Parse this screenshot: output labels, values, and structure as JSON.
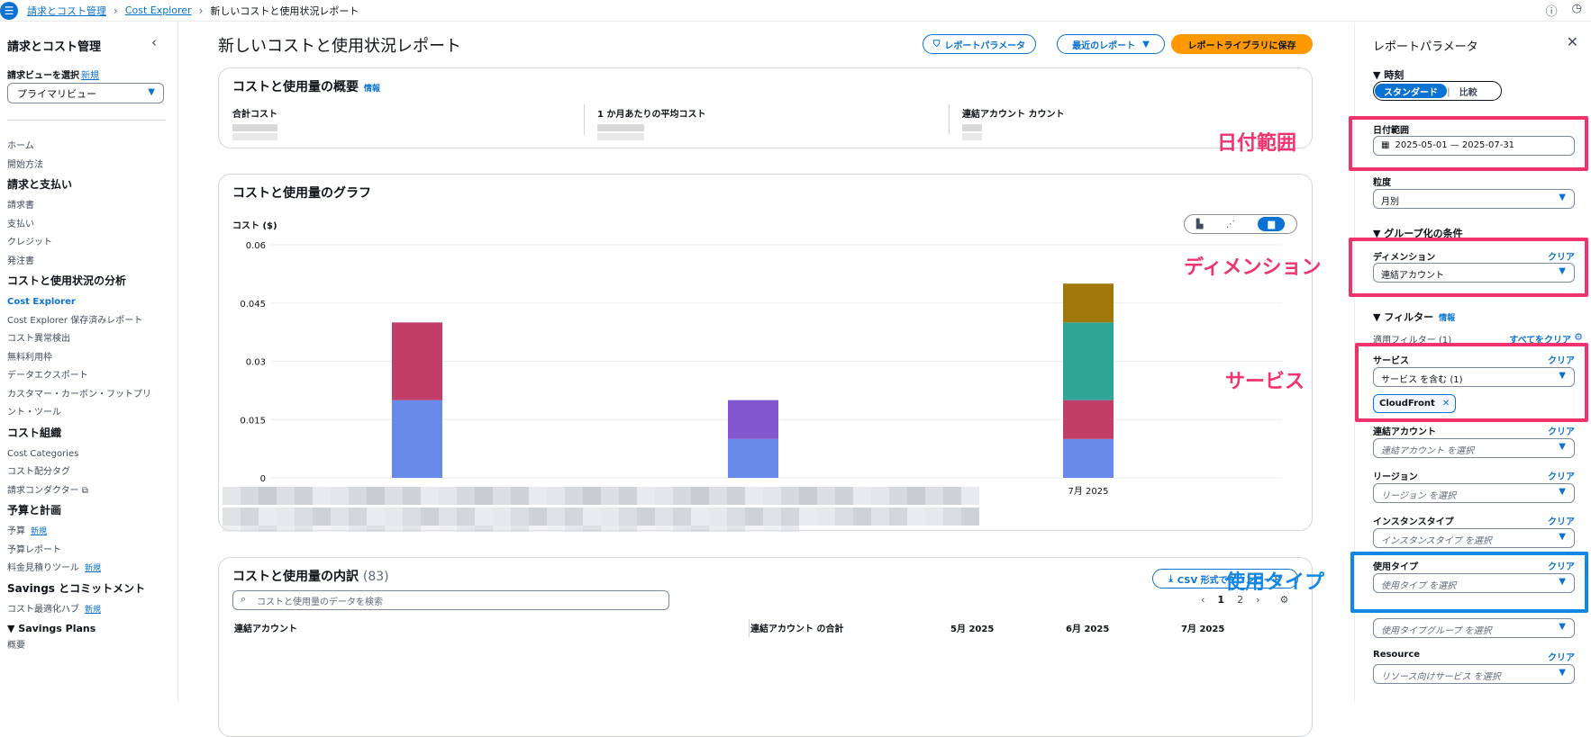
{
  "breadcrumbs": [
    "請求とコスト管理",
    "Cost Explorer",
    "新しいコストと使用状況レポート"
  ],
  "sidebar": {
    "title": "請求とコスト管理",
    "view_label": "請求ビューを選択",
    "new_badge": "新規",
    "view_value": "プライマリビュー",
    "items": [
      {
        "text": "ホーム",
        "kind": "item"
      },
      {
        "text": "開始方法",
        "kind": "item"
      },
      {
        "text": "請求と支払い",
        "kind": "header"
      },
      {
        "text": "請求書",
        "kind": "item"
      },
      {
        "text": "支払い",
        "kind": "item"
      },
      {
        "text": "クレジット",
        "kind": "item"
      },
      {
        "text": "発注書",
        "kind": "item"
      },
      {
        "text": "コストと使用状況の分析",
        "kind": "header"
      },
      {
        "text": "Cost Explorer",
        "kind": "active"
      },
      {
        "text": "Cost Explorer 保存済みレポート",
        "kind": "item"
      },
      {
        "text": "コスト異常検出",
        "kind": "item"
      },
      {
        "text": "無料利用枠",
        "kind": "item"
      },
      {
        "text": "データエクスポート",
        "kind": "item"
      },
      {
        "text": "カスタマー・カーボン・フットプリ",
        "kind": "item"
      },
      {
        "text": "ント・ツール",
        "kind": "item"
      },
      {
        "text": "コスト組織",
        "kind": "header"
      },
      {
        "text": "Cost Categories",
        "kind": "item"
      },
      {
        "text": "コスト配分タグ",
        "kind": "item"
      },
      {
        "text": "請求コンダクター ⧉",
        "kind": "item"
      },
      {
        "text": "予算と計画",
        "kind": "header"
      },
      {
        "text": "予算",
        "kind": "item",
        "new": "新規"
      },
      {
        "text": "予算レポート",
        "kind": "item"
      },
      {
        "text": "料金見積りツール",
        "kind": "item",
        "new": "新規"
      },
      {
        "text": "Savings とコミットメント",
        "kind": "header"
      },
      {
        "text": "コスト最適化ハブ",
        "kind": "item",
        "new": "新規"
      },
      {
        "text": "▼ Savings Plans",
        "kind": "subheader"
      },
      {
        "text": "概要",
        "kind": "item"
      }
    ]
  },
  "main": {
    "title": "新しいコストと使用状況レポート",
    "btn_params": "レポートパラメータ",
    "btn_recent": "最近のレポート",
    "btn_save": "レポートライブラリに保存",
    "summary": {
      "title": "コストと使用量の概要",
      "info": "情報",
      "kpi_total": "合計コスト",
      "kpi_avg": "1 か月あたりの平均コスト",
      "kpi_accounts": "連結アカウント カウント"
    },
    "graph": {
      "title": "コストと使用量のグラフ"
    },
    "breakdown": {
      "title": "コストと使用量の内訳",
      "count": "(83)",
      "csv": "CSV 形式でダウンロード",
      "search_placeholder": "コストと使用量のデータを検索",
      "page1": "1",
      "page2": "2",
      "cols": [
        "連結アカウント",
        "連結アカウント の合計",
        "5月 2025",
        "6月 2025",
        "7月 2025"
      ]
    }
  },
  "chart_data": {
    "type": "bar",
    "stacked": true,
    "ylabel": "コスト ($)",
    "ylim": [
      0,
      0.06
    ],
    "yticks": [
      "0.06",
      "0.045",
      "0.03",
      "0.015",
      "0"
    ],
    "categories": [
      "",
      "",
      "7月 2025"
    ],
    "series": [
      {
        "color": "#688ae8",
        "values": [
          0.02,
          0.01,
          0.01
        ]
      },
      {
        "color": "#c33d69",
        "values": [
          0.02,
          0,
          0.01
        ]
      },
      {
        "color": "#8456ce",
        "values": [
          0,
          0.01,
          0
        ]
      },
      {
        "color": "#2ea597",
        "values": [
          0,
          0,
          0.02
        ]
      },
      {
        "color": "#a0780b",
        "values": [
          0,
          0,
          0.01
        ]
      }
    ]
  },
  "panel": {
    "title": "レポートパラメータ",
    "time_section": "▼ 時刻",
    "toggle_standard": "スタンダード",
    "toggle_compare": "比較",
    "date_label": "日付範囲",
    "date_value": "2025-05-01 — 2025-07-31",
    "granularity_label": "粒度",
    "granularity_value": "月別",
    "group_section": "▼ グループ化の条件",
    "dimension_label": "ディメンション",
    "dimension_value": "連結アカウント",
    "clear": "クリア",
    "filter_section": "▼ フィルター",
    "filter_info": "情報",
    "applied_filters": "適用フィルター (1)",
    "clear_all": "すべてをクリア",
    "service_label": "サービス",
    "service_value": "サービス を含む (1)",
    "service_token": "CloudFront",
    "linked_label": "連結アカウント",
    "linked_ph": "連結アカウント を選択",
    "region_label": "リージョン",
    "region_ph": "リージョン を選択",
    "instance_label": "インスタンスタイプ",
    "instance_ph": "インスタンスタイプ を選択",
    "usage_label": "使用タイプ",
    "usage_ph": "使用タイプ を選択",
    "usage_group_ph": "使用タイプグループ を選択",
    "resource_label": "Resource",
    "resource_ph": "リソース向けサービス を選択"
  },
  "annotations": {
    "date": "日付範囲",
    "dimension": "ディメンション",
    "service": "サービス",
    "usage": "使用タイプ"
  }
}
